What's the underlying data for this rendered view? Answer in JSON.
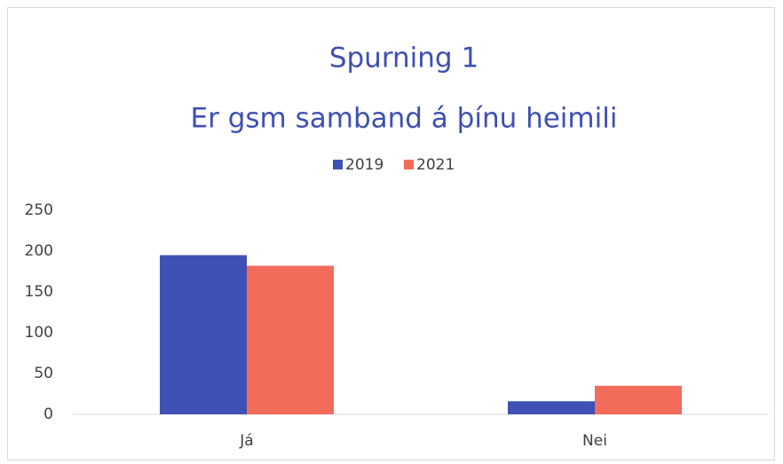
{
  "chart_data": {
    "type": "bar",
    "title": "Spurning 1",
    "subtitle": "Er gsm samband á þínu heimili",
    "categories": [
      "Já",
      "Nei"
    ],
    "series": [
      {
        "name": "2019",
        "color": "#3f51b5",
        "values": [
          195,
          16
        ]
      },
      {
        "name": "2021",
        "color": "#f26b5b",
        "values": [
          182,
          35
        ]
      }
    ],
    "ylim": [
      0,
      250
    ],
    "yticks": [
      0,
      50,
      100,
      150,
      200,
      250
    ],
    "grid": false,
    "legend": "top"
  }
}
